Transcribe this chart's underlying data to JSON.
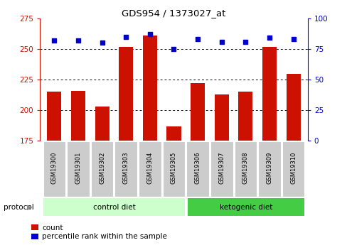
{
  "title": "GDS954 / 1373027_at",
  "samples": [
    "GSM19300",
    "GSM19301",
    "GSM19302",
    "GSM19303",
    "GSM19304",
    "GSM19305",
    "GSM19306",
    "GSM19307",
    "GSM19308",
    "GSM19309",
    "GSM19310"
  ],
  "count_values": [
    215,
    216,
    203,
    252,
    261,
    187,
    222,
    213,
    215,
    252,
    230
  ],
  "percentile_values": [
    82,
    82,
    80,
    85,
    87,
    75,
    83,
    81,
    81,
    84,
    83
  ],
  "ylim_left": [
    175,
    275
  ],
  "ylim_right": [
    0,
    100
  ],
  "yticks_left": [
    175,
    200,
    225,
    250,
    275
  ],
  "yticks_right": [
    0,
    25,
    50,
    75,
    100
  ],
  "n_control": 6,
  "n_ketogenic": 5,
  "bar_color": "#cc1100",
  "dot_color": "#0000cc",
  "control_bg": "#ccffcc",
  "ketogenic_bg": "#44cc44",
  "sample_bg": "#cccccc",
  "grid_color": "#000000",
  "left_axis_color": "#cc1100",
  "right_axis_color": "#0000cc",
  "bar_width": 0.6,
  "legend_count_label": "count",
  "legend_percentile_label": "percentile rank within the sample",
  "protocol_label": "protocol",
  "control_label": "control diet",
  "ketogenic_label": "ketogenic diet"
}
